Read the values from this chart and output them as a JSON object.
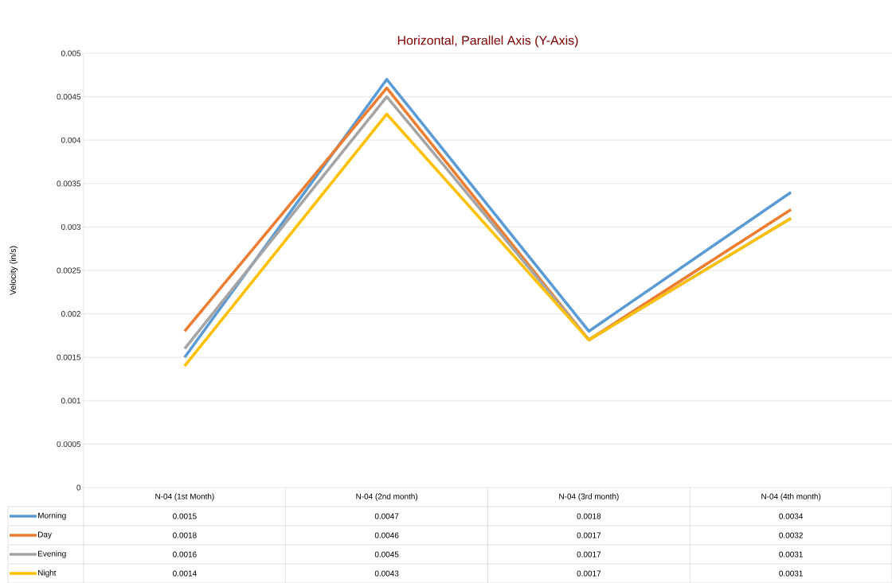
{
  "chart_data": {
    "type": "line",
    "title": "Horizontal, Parallel Axis (Y-Axis)",
    "ylabel": "Velocity (in/s)",
    "categories": [
      "N-04 (1st Month)",
      "N-04 (2nd month)",
      "N-04 (3rd month)",
      "N-04 (4th month)"
    ],
    "series": [
      {
        "name": "Morning",
        "color": "#5b9bd5",
        "values": [
          0.0015,
          0.0047,
          0.0018,
          0.0034
        ]
      },
      {
        "name": "Day",
        "color": "#ed7d31",
        "values": [
          0.0018,
          0.0046,
          0.0017,
          0.0032
        ]
      },
      {
        "name": "Evening",
        "color": "#a5a5a5",
        "values": [
          0.0016,
          0.0045,
          0.0017,
          0.0031
        ]
      },
      {
        "name": "Night",
        "color": "#ffc000",
        "values": [
          0.0014,
          0.0043,
          0.0017,
          0.0031
        ]
      }
    ],
    "ylim": [
      0,
      0.005
    ],
    "yticks": [
      0,
      0.0005,
      0.001,
      0.0015,
      0.002,
      0.0025,
      0.003,
      0.0035,
      0.004,
      0.0045,
      0.005
    ],
    "grid": "y",
    "legend": "bottom",
    "data_labels": true,
    "marker": "none",
    "line_style": "solid"
  }
}
